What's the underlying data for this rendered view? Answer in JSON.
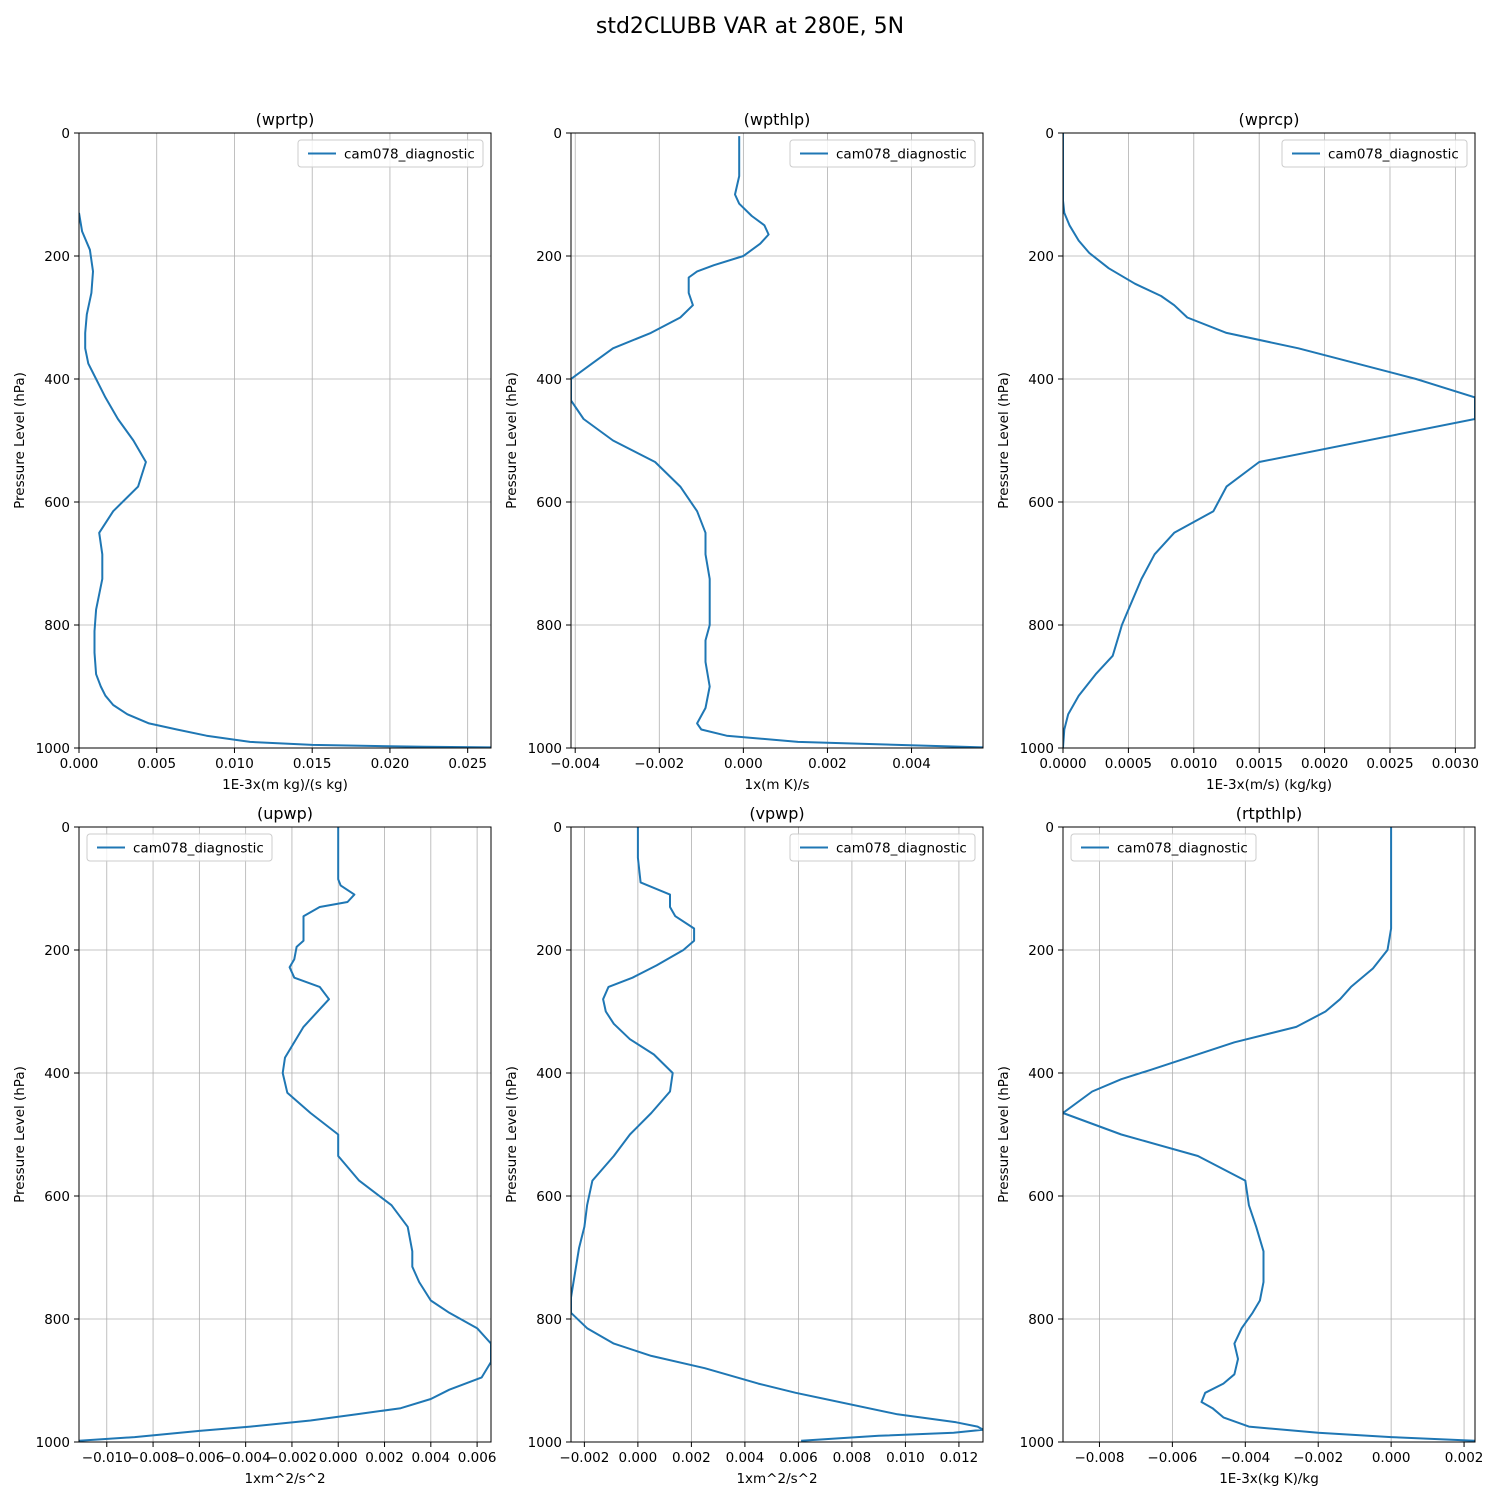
{
  "figure": {
    "title": "std2CLUBB VAR at 280E, 5N"
  },
  "chart_data": [
    {
      "type": "line",
      "title": "(wprtp)",
      "xlabel": "1E-3x(m kg)/(s kg)",
      "ylabel": "Pressure Level (hPa)",
      "xlim": [
        0,
        0.0265
      ],
      "ylim": [
        1000,
        0
      ],
      "y_inverted": true,
      "grid": true,
      "legend_position": "upper right",
      "xticks": [
        0.0,
        0.005,
        0.01,
        0.015,
        0.02,
        0.025
      ],
      "xtick_labels": [
        "0.000",
        "0.005",
        "0.010",
        "0.015",
        "0.020",
        "0.025"
      ],
      "yticks": [
        0,
        200,
        400,
        600,
        800,
        1000
      ],
      "ytick_labels": [
        "0",
        "200",
        "400",
        "600",
        "800",
        "1000"
      ],
      "series": [
        {
          "name": "cam078_diagnostic",
          "color": "#1f77b4",
          "x": [
            0.0,
            0.0002,
            0.0007,
            0.0009,
            0.0008,
            0.0005,
            0.0004,
            0.0004,
            0.0006,
            0.0011,
            0.0017,
            0.0025,
            0.0035,
            0.0043,
            0.0038,
            0.0022,
            0.0013,
            0.0015,
            0.0015,
            0.0011,
            0.001,
            0.001,
            0.0011,
            0.0014,
            0.0017,
            0.0022,
            0.0031,
            0.0045,
            0.0063,
            0.0082,
            0.011,
            0.015,
            0.0222,
            0.0265
          ],
          "y": [
            130,
            160,
            190,
            225,
            260,
            295,
            325,
            350,
            375,
            400,
            430,
            465,
            500,
            535,
            575,
            615,
            650,
            685,
            725,
            775,
            810,
            845,
            880,
            900,
            915,
            930,
            945,
            960,
            970,
            980,
            990,
            995,
            998,
            999
          ]
        }
      ]
    },
    {
      "type": "line",
      "title": "(wpthlp)",
      "xlabel": "1x(m K)/s",
      "ylabel": "Pressure Level (hPa)",
      "xlim": [
        -0.0041,
        0.0057
      ],
      "ylim": [
        1000,
        0
      ],
      "y_inverted": true,
      "grid": true,
      "legend_position": "upper right",
      "xticks": [
        -0.004,
        -0.002,
        0.0,
        0.002,
        0.004
      ],
      "xtick_labels": [
        "−0.004",
        "−0.002",
        "0.000",
        "0.002",
        "0.004"
      ],
      "yticks": [
        0,
        200,
        400,
        600,
        800,
        1000
      ],
      "ytick_labels": [
        "0",
        "200",
        "400",
        "600",
        "800",
        "1000"
      ],
      "series": [
        {
          "name": "cam078_diagnostic",
          "color": "#1f77b4",
          "x": [
            -0.0001,
            -0.0001,
            -0.0001,
            -0.0001,
            -0.0002,
            -0.0001,
            0.0002,
            0.0005,
            0.0006,
            0.0004,
            0.0,
            -0.0007,
            -0.0011,
            -0.0013,
            -0.0013,
            -0.0013,
            -0.0012,
            -0.0015,
            -0.0022,
            -0.0031,
            -0.0036,
            -0.0041,
            -0.0041,
            -0.0038,
            -0.0031,
            -0.0021,
            -0.0015,
            -0.0011,
            -0.0009,
            -0.0009,
            -0.0008,
            -0.0008,
            -0.0009,
            -0.0009,
            -0.0008,
            -0.0009,
            -0.0011,
            -0.001,
            -0.0004,
            0.0013,
            0.0057
          ],
          "y": [
            5,
            20,
            40,
            70,
            100,
            115,
            135,
            150,
            165,
            180,
            200,
            215,
            225,
            235,
            245,
            260,
            280,
            300,
            325,
            350,
            375,
            400,
            435,
            465,
            500,
            535,
            575,
            615,
            650,
            685,
            725,
            800,
            825,
            860,
            900,
            935,
            960,
            970,
            980,
            990,
            999
          ]
        }
      ]
    },
    {
      "type": "line",
      "title": "(wprcp)",
      "xlabel": "1E-3x(m/s) (kg/kg)",
      "ylabel": "Pressure Level (hPa)",
      "xlim": [
        0,
        0.00315
      ],
      "ylim": [
        1000,
        0
      ],
      "y_inverted": true,
      "grid": true,
      "legend_position": "upper right",
      "xticks": [
        0.0,
        0.0005,
        0.001,
        0.0015,
        0.002,
        0.0025,
        0.003
      ],
      "xtick_labels": [
        "0.0000",
        "0.0005",
        "0.0010",
        "0.0015",
        "0.0020",
        "0.0025",
        "0.0030"
      ],
      "yticks": [
        0,
        200,
        400,
        600,
        800,
        1000
      ],
      "ytick_labels": [
        "0",
        "200",
        "400",
        "600",
        "800",
        "1000"
      ],
      "series": [
        {
          "name": "cam078_diagnostic",
          "color": "#1f77b4",
          "x": [
            0.0,
            0.0,
            1e-05,
            5e-05,
            0.00012,
            0.0002,
            0.00035,
            0.00055,
            0.00075,
            0.00085,
            0.00095,
            0.00125,
            0.0018,
            0.0027,
            0.00315,
            0.00315,
            0.0015,
            0.00125,
            0.00115,
            0.00085,
            0.0007,
            0.0006,
            0.0005,
            0.00045,
            0.00043,
            0.00038,
            0.00025,
            0.00012,
            4e-05,
            1e-05,
            0.0
          ],
          "y": [
            0,
            110,
            130,
            150,
            175,
            195,
            220,
            245,
            265,
            280,
            300,
            325,
            350,
            400,
            430,
            465,
            535,
            575,
            615,
            650,
            685,
            725,
            775,
            800,
            815,
            850,
            880,
            915,
            945,
            970,
            999
          ]
        }
      ]
    },
    {
      "type": "line",
      "title": "(upwp)",
      "xlabel": "1xm^2/s^2",
      "ylabel": "Pressure Level (hPa)",
      "xlim": [
        -0.0112,
        0.0066
      ],
      "ylim": [
        1000,
        0
      ],
      "y_inverted": true,
      "grid": true,
      "legend_position": "upper left",
      "xticks": [
        -0.01,
        -0.008,
        -0.006,
        -0.004,
        -0.002,
        0.0,
        0.002,
        0.004,
        0.006
      ],
      "xtick_labels": [
        "−0.010",
        "−0.008",
        "−0.006",
        "−0.004",
        "−0.002",
        "0.000",
        "0.002",
        "0.004",
        "0.006"
      ],
      "yticks": [
        0,
        200,
        400,
        600,
        800,
        1000
      ],
      "ytick_labels": [
        "0",
        "200",
        "400",
        "600",
        "800",
        "1000"
      ],
      "series": [
        {
          "name": "cam078_diagnostic",
          "color": "#1f77b4",
          "x": [
            0.0,
            0.0,
            0.0,
            0.0001,
            0.0007,
            0.0004,
            -0.0008,
            -0.0015,
            -0.0015,
            -0.0018,
            -0.0019,
            -0.0021,
            -0.0019,
            -0.0008,
            -0.0004,
            -0.0015,
            -0.0023,
            -0.0024,
            -0.0022,
            -0.0012,
            0.0,
            0.0,
            0.0009,
            0.0023,
            0.003,
            0.0032,
            0.0032,
            0.0035,
            0.004,
            0.0048,
            0.006,
            0.0066,
            0.0066,
            0.0062,
            0.0048,
            0.004,
            0.0027,
            0.0008,
            -0.0012,
            -0.0038,
            -0.006,
            -0.0088,
            -0.0112
          ],
          "y": [
            0,
            40,
            85,
            95,
            110,
            122,
            130,
            145,
            185,
            195,
            215,
            228,
            245,
            260,
            280,
            325,
            375,
            400,
            432,
            465,
            500,
            535,
            575,
            615,
            650,
            690,
            715,
            740,
            770,
            790,
            815,
            840,
            870,
            895,
            915,
            930,
            945,
            955,
            965,
            975,
            982,
            992,
            998
          ]
        }
      ]
    },
    {
      "type": "line",
      "title": "(vpwp)",
      "xlabel": "1xm^2/s^2",
      "ylabel": "Pressure Level (hPa)",
      "xlim": [
        -0.0025,
        0.0129
      ],
      "ylim": [
        1000,
        0
      ],
      "y_inverted": true,
      "grid": true,
      "legend_position": "upper right",
      "xticks": [
        -0.002,
        0.0,
        0.002,
        0.004,
        0.006,
        0.008,
        0.01,
        0.012
      ],
      "xtick_labels": [
        "−0.002",
        "0.000",
        "0.002",
        "0.004",
        "0.006",
        "0.008",
        "0.010",
        "0.012"
      ],
      "yticks": [
        0,
        200,
        400,
        600,
        800,
        1000
      ],
      "ytick_labels": [
        "0",
        "200",
        "400",
        "600",
        "800",
        "1000"
      ],
      "series": [
        {
          "name": "cam078_diagnostic",
          "color": "#1f77b4",
          "x": [
            0.0,
            0.0,
            0.0001,
            0.0012,
            0.0012,
            0.0014,
            0.0021,
            0.0021,
            0.0017,
            0.0013,
            0.0007,
            -0.0002,
            -0.0011,
            -0.0013,
            -0.0012,
            -0.0009,
            -0.0003,
            0.0006,
            0.0013,
            0.0012,
            0.0005,
            -0.0003,
            -0.0009,
            -0.0017,
            -0.0019,
            -0.002,
            -0.0022,
            -0.0025,
            -0.0025,
            -0.0019,
            -0.0009,
            0.0005,
            0.0025,
            0.0045,
            0.0059,
            0.0097,
            0.0119,
            0.0127,
            0.0129,
            0.0118,
            0.009,
            0.0061
          ],
          "y": [
            0,
            50,
            90,
            110,
            130,
            145,
            165,
            185,
            200,
            210,
            225,
            245,
            260,
            280,
            300,
            320,
            345,
            370,
            400,
            430,
            465,
            500,
            535,
            575,
            615,
            650,
            685,
            765,
            790,
            815,
            840,
            860,
            880,
            905,
            920,
            955,
            968,
            975,
            980,
            985,
            990,
            998
          ]
        }
      ]
    },
    {
      "type": "line",
      "title": "(rtpthlp)",
      "xlabel": "1E-3x(kg K)/kg",
      "ylabel": "Pressure Level (hPa)",
      "xlim": [
        -0.009,
        0.0023
      ],
      "ylim": [
        1000,
        0
      ],
      "y_inverted": true,
      "grid": true,
      "legend_position": "upper left",
      "xticks": [
        -0.008,
        -0.006,
        -0.004,
        -0.002,
        0.0,
        0.002
      ],
      "xtick_labels": [
        "−0.008",
        "−0.006",
        "−0.004",
        "−0.002",
        "0.000",
        "0.002"
      ],
      "yticks": [
        0,
        200,
        400,
        600,
        800,
        1000
      ],
      "ytick_labels": [
        "0",
        "200",
        "400",
        "600",
        "800",
        "1000"
      ],
      "series": [
        {
          "name": "cam078_diagnostic",
          "color": "#1f77b4",
          "x": [
            0.0,
            0.0,
            0.0,
            -0.0001,
            -0.0005,
            -0.0011,
            -0.0014,
            -0.0018,
            -0.0026,
            -0.0043,
            -0.0066,
            -0.0074,
            -0.0082,
            -0.009,
            -0.0074,
            -0.0053,
            -0.004,
            -0.0039,
            -0.0037,
            -0.0035,
            -0.0035,
            -0.0036,
            -0.0038,
            -0.0041,
            -0.0043,
            -0.0042,
            -0.0043,
            -0.0046,
            -0.0051,
            -0.0052,
            -0.0049,
            -0.0046,
            -0.0039,
            -0.002,
            0.0,
            0.0023
          ],
          "y": [
            0,
            100,
            165,
            200,
            230,
            260,
            280,
            300,
            325,
            350,
            395,
            410,
            430,
            465,
            500,
            535,
            575,
            615,
            650,
            690,
            740,
            770,
            790,
            815,
            840,
            865,
            890,
            905,
            920,
            935,
            945,
            960,
            975,
            985,
            992,
            998
          ]
        }
      ]
    }
  ]
}
